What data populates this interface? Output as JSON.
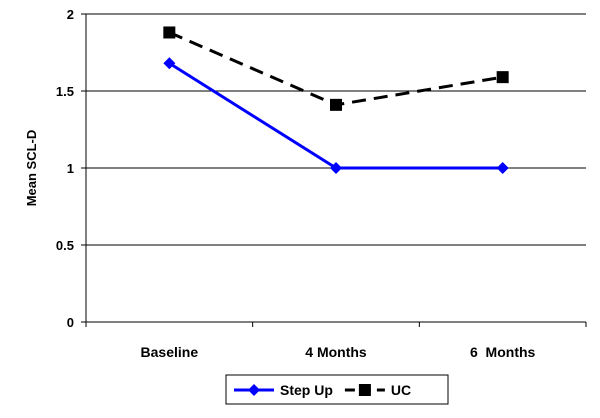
{
  "chart_data": {
    "type": "line",
    "title": "",
    "xlabel": "",
    "ylabel": "Mean SCL-D",
    "categories": [
      "Baseline",
      "4 Months",
      "6  Months"
    ],
    "ylim": [
      0,
      2
    ],
    "yticks": [
      0,
      0.5,
      1,
      1.5,
      2
    ],
    "ytick_labels": [
      "0",
      "0.5",
      "1",
      "1.5",
      "2"
    ],
    "grid": true,
    "legend": "bottom",
    "series": [
      {
        "name": "Step Up",
        "values": [
          1.68,
          1.0,
          1.0
        ],
        "color": "#0000ff",
        "dash": "solid",
        "marker": "diamond"
      },
      {
        "name": "UC",
        "values": [
          1.88,
          1.41,
          1.59
        ],
        "color": "#000000",
        "dash": "dashed",
        "marker": "square"
      }
    ]
  }
}
